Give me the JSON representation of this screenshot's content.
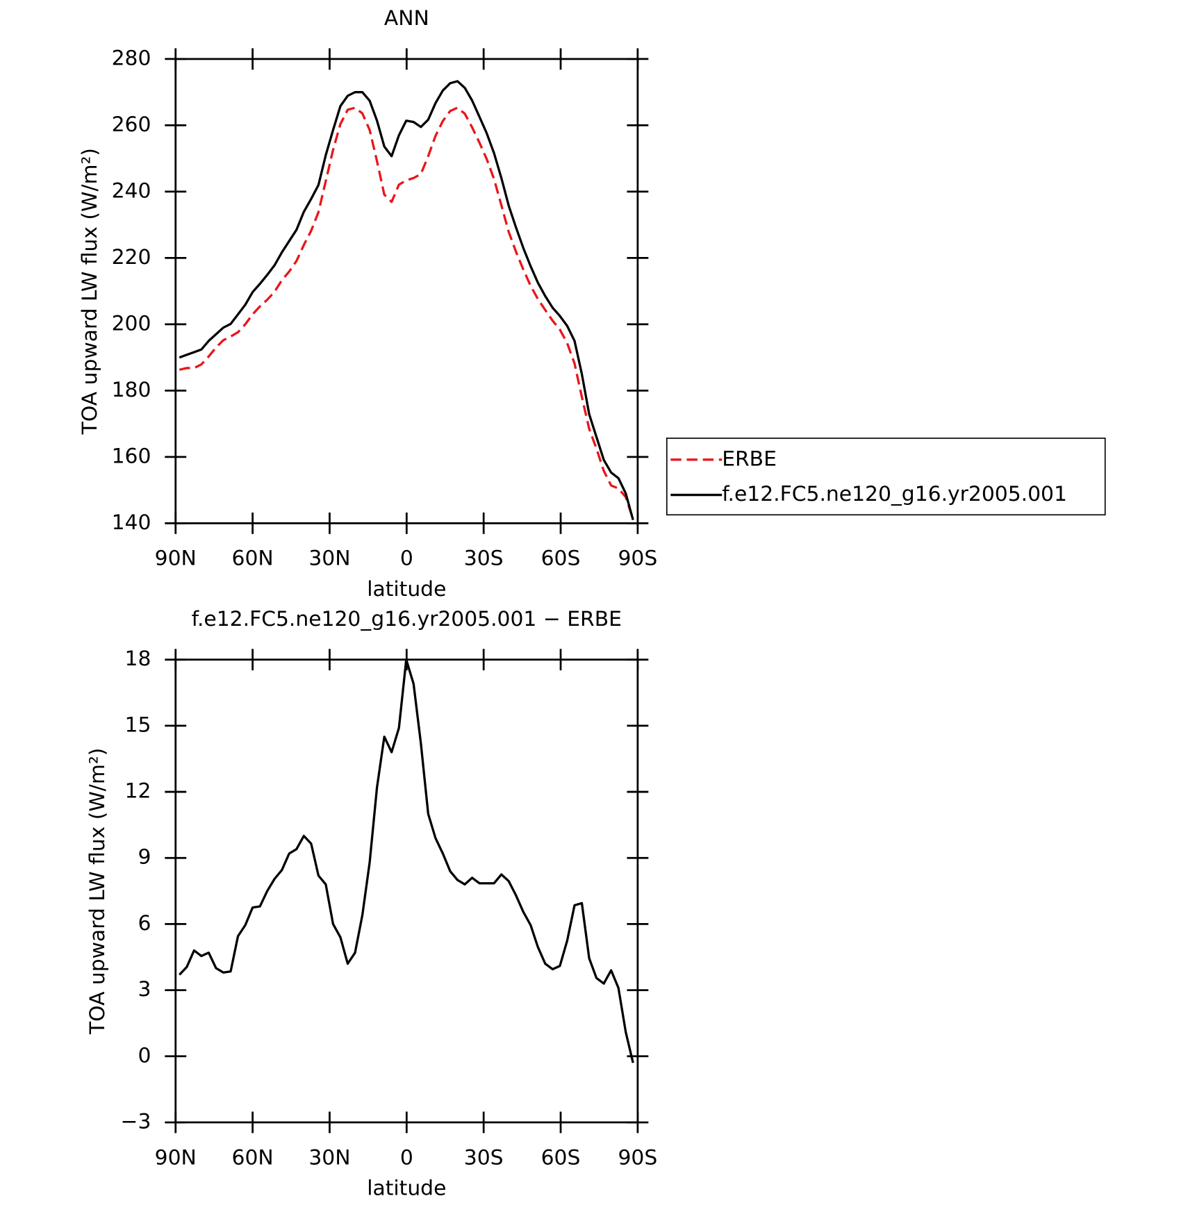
{
  "chart_data": [
    {
      "type": "line",
      "title": "ANN",
      "xlabel": "latitude",
      "ylabel": "TOA upward LW flux (W/m²)",
      "x": [
        88.5,
        85.65,
        82.8,
        79.95,
        77.1,
        74.25,
        71.4,
        68.55,
        65.7,
        62.85,
        60,
        57.15,
        54.3,
        51.45,
        48.6,
        45.75,
        42.9,
        40.05,
        37.2,
        34.35,
        31.5,
        28.65,
        25.8,
        22.95,
        20.1,
        17.25,
        14.4,
        11.55,
        8.7,
        5.85,
        3,
        0.15,
        -2.7,
        -5.55,
        -8.4,
        -11.25,
        -14.1,
        -16.95,
        -19.8,
        -22.65,
        -25.5,
        -28.35,
        -31.2,
        -34.05,
        -36.9,
        -39.75,
        -42.6,
        -45.45,
        -48.3,
        -51.15,
        -54,
        -56.85,
        -59.7,
        -62.55,
        -65.4,
        -68.25,
        -71.1,
        -73.95,
        -76.8,
        -79.65,
        -82.5,
        -85.35,
        -88.2
      ],
      "series": [
        {
          "name": "ERBE",
          "color": "#e8161b",
          "style": "dashed",
          "values": [
            186.3,
            186.8,
            186.8,
            187.9,
            190.3,
            193,
            195.2,
            196.3,
            197.6,
            200,
            203,
            205.4,
            207.4,
            209.8,
            213.3,
            215.9,
            219.1,
            223.9,
            228.2,
            233.8,
            243.2,
            252.6,
            260.4,
            264.7,
            265.3,
            263.6,
            258.6,
            249.2,
            239.1,
            236.9,
            242.1,
            243.4,
            244.1,
            245.3,
            250.7,
            256.8,
            261.3,
            264.3,
            265.3,
            263.5,
            259.4,
            254.8,
            249.8,
            243.8,
            235.9,
            227.9,
            221.9,
            216.5,
            211.6,
            207.6,
            204.3,
            201.1,
            198.4,
            194.3,
            188.2,
            178.1,
            168.5,
            162.5,
            155.8,
            151.4,
            150.5,
            147.9,
            141.3
          ]
        },
        {
          "name": "f.e12.FC5.ne120_g16.yr2005.001",
          "color": "#000000",
          "style": "solid",
          "values": [
            190,
            190.8,
            191.6,
            192.4,
            195,
            197,
            199,
            200.1,
            203,
            205.9,
            209.7,
            212.2,
            214.9,
            217.8,
            221.7,
            225.1,
            228.5,
            233.9,
            237.8,
            242,
            251,
            258.6,
            265.8,
            268.9,
            270,
            270,
            267.4,
            261.4,
            253.6,
            250.7,
            257,
            261.4,
            261,
            259.5,
            261.7,
            266.7,
            270.5,
            272.7,
            273.3,
            271.3,
            267.5,
            262.6,
            257.6,
            251.6,
            244.1,
            235.8,
            229.2,
            223,
            217.5,
            212.5,
            208.5,
            205,
            202.5,
            199.5,
            195,
            185,
            172.9,
            166,
            159.1,
            155.3,
            153.6,
            149,
            141
          ]
        }
      ],
      "xlim": [
        90,
        -90
      ],
      "xticks": [
        {
          "value": 90,
          "label": "90N"
        },
        {
          "value": 60,
          "label": "60N"
        },
        {
          "value": 30,
          "label": "30N"
        },
        0,
        {
          "value": -30,
          "label": "30S"
        },
        {
          "value": -60,
          "label": "60S"
        },
        {
          "value": -90,
          "label": "90S"
        }
      ],
      "ylim": [
        140,
        280
      ],
      "yticks": [
        140,
        160,
        180,
        200,
        220,
        240,
        260,
        280
      ],
      "legend": "right"
    },
    {
      "type": "line",
      "title": "f.e12.FC5.ne120_g16.yr2005.001 − ERBE",
      "xlabel": "latitude",
      "ylabel": "TOA upward LW flux (W/m²)",
      "x": [
        88.5,
        85.65,
        82.8,
        79.95,
        77.1,
        74.25,
        71.4,
        68.55,
        65.7,
        62.85,
        60,
        57.15,
        54.3,
        51.45,
        48.6,
        45.75,
        42.9,
        40.05,
        37.2,
        34.35,
        31.5,
        28.65,
        25.8,
        22.95,
        20.1,
        17.25,
        14.4,
        11.55,
        8.7,
        5.85,
        3,
        0.15,
        -2.7,
        -5.55,
        -8.4,
        -11.25,
        -14.1,
        -16.95,
        -19.8,
        -22.65,
        -25.5,
        -28.35,
        -31.2,
        -34.05,
        -36.9,
        -39.75,
        -42.6,
        -45.45,
        -48.3,
        -51.15,
        -54,
        -56.85,
        -59.7,
        -62.55,
        -65.4,
        -68.25,
        -71.1,
        -73.95,
        -76.8,
        -79.65,
        -82.5,
        -85.35,
        -88.2
      ],
      "values": [
        3.7,
        4.05,
        4.8,
        4.55,
        4.7,
        4.0,
        3.8,
        3.85,
        5.45,
        5.95,
        6.75,
        6.8,
        7.5,
        8.05,
        8.45,
        9.2,
        9.4,
        10.0,
        9.65,
        8.2,
        7.8,
        6.0,
        5.4,
        4.2,
        4.7,
        6.4,
        8.8,
        12.2,
        14.5,
        13.8,
        14.9,
        18.0,
        16.9,
        14.2,
        11.0,
        9.9,
        9.2,
        8.4,
        8.0,
        7.8,
        8.1,
        7.85,
        7.85,
        7.85,
        8.25,
        7.95,
        7.3,
        6.55,
        5.95,
        4.95,
        4.2,
        3.95,
        4.1,
        5.25,
        6.85,
        6.95,
        4.45,
        3.55,
        3.3,
        3.9,
        3.1,
        1.1,
        -0.3
      ],
      "color": "#000000",
      "style": "solid",
      "xlim": [
        90,
        -90
      ],
      "xticks": [
        {
          "value": 90,
          "label": "90N"
        },
        {
          "value": 60,
          "label": "60N"
        },
        {
          "value": 30,
          "label": "30N"
        },
        0,
        {
          "value": -30,
          "label": "30S"
        },
        {
          "value": -60,
          "label": "60S"
        },
        {
          "value": -90,
          "label": "90S"
        }
      ],
      "ylim": [
        -3,
        18
      ],
      "yticks": [
        {
          "value": -3,
          "label": "−3"
        },
        0,
        3,
        6,
        9,
        12,
        15,
        18
      ]
    }
  ]
}
